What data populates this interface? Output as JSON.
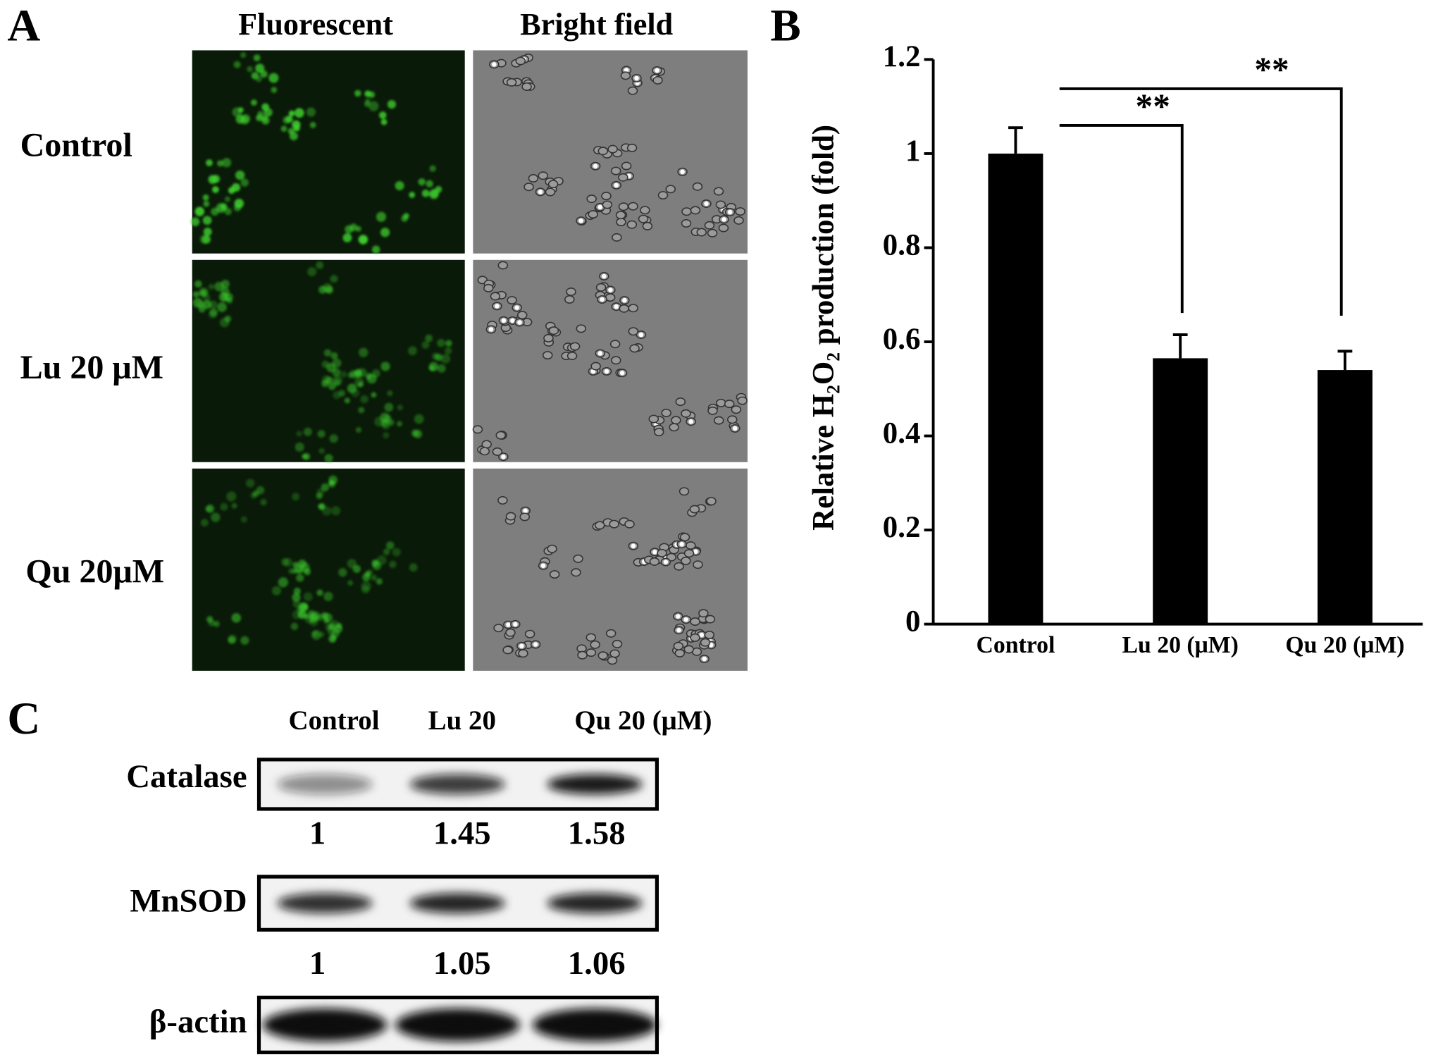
{
  "panel_a": {
    "label": "A",
    "columns": [
      "Fluorescent",
      "Bright field"
    ],
    "rows": [
      "Control",
      "Lu 20 μM",
      "Qu 20μM"
    ]
  },
  "chart_data": {
    "type": "bar",
    "panel_label": "B",
    "y_label": "Relative H₂O₂ production (fold)",
    "categories": [
      "Control",
      "Lu 20 (μM)",
      "Qu 20 (μM)"
    ],
    "values": [
      1.0,
      0.565,
      0.54
    ],
    "errors": [
      0.055,
      0.05,
      0.04
    ],
    "color": "#000000",
    "ylim": [
      0,
      1.2
    ],
    "yticks": [
      0,
      0.2,
      0.4,
      0.6,
      0.8,
      1,
      1.2
    ],
    "annotations": [
      "**",
      "**"
    ]
  },
  "panel_c": {
    "label": "C",
    "lanes": [
      "Control",
      "Lu 20",
      "Qu 20 (μM)"
    ],
    "proteins": [
      {
        "name": "Catalase",
        "ratios": [
          1,
          1.45,
          1.58
        ]
      },
      {
        "name": "MnSOD",
        "ratios": [
          1,
          1.05,
          1.06
        ]
      },
      {
        "name": "β-actin"
      }
    ]
  }
}
